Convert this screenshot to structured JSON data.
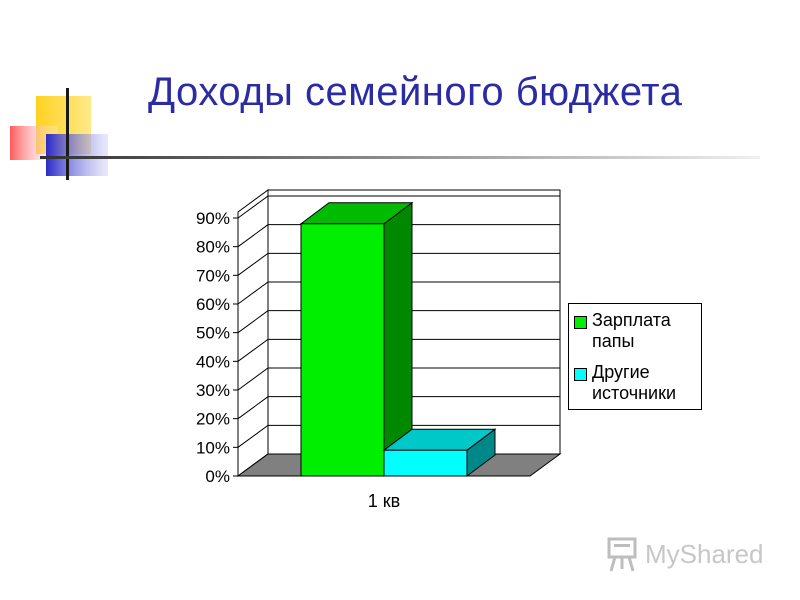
{
  "slide": {
    "title": "Доходы семейного бюджета"
  },
  "logo": {
    "text": "MyShared",
    "icon": "presentation-board-icon"
  },
  "colors": {
    "title": "#2b2ba5",
    "series_1": "#00ee00",
    "series_2": "#00ffff",
    "floor": "#808080"
  },
  "chart_data": {
    "type": "bar",
    "categories": [
      "1 кв"
    ],
    "series": [
      {
        "name": "Зарплата папы",
        "values": [
          88
        ]
      },
      {
        "name": "Другие источники",
        "values": [
          9
        ]
      }
    ],
    "y_ticks": [
      "0%",
      "10%",
      "20%",
      "30%",
      "40%",
      "50%",
      "60%",
      "70%",
      "80%",
      "90%"
    ],
    "ylim": [
      0,
      90
    ],
    "y_unit": "%",
    "grid": true,
    "three_d": true,
    "legend": "right",
    "legend_labels": [
      "Зарплата",
      "папы",
      "Другие",
      "источники"
    ]
  }
}
